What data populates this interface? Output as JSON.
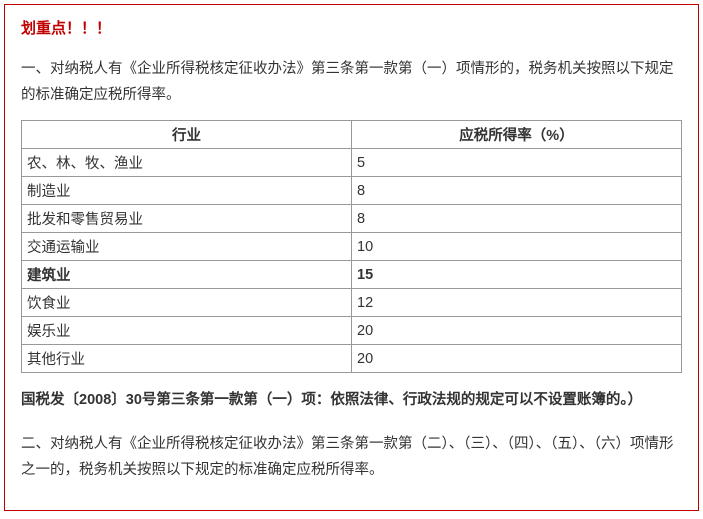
{
  "highlight": "划重点！！！",
  "para1": "一、对纳税人有《企业所得税核定征收办法》第三条第一款第（一）项情形的，税务机关按照以下规定的标准确定应税所得率。",
  "table": {
    "headers": [
      "行业",
      "应税所得率（%）"
    ],
    "rows": [
      {
        "industry": "农、林、牧、渔业",
        "rate": "5",
        "bold": false
      },
      {
        "industry": "制造业",
        "rate": "8",
        "bold": false
      },
      {
        "industry": "批发和零售贸易业",
        "rate": "8",
        "bold": false
      },
      {
        "industry": "交通运输业",
        "rate": "10",
        "bold": false
      },
      {
        "industry": "建筑业",
        "rate": "15",
        "bold": true
      },
      {
        "industry": "饮食业",
        "rate": "12",
        "bold": false
      },
      {
        "industry": "娱乐业",
        "rate": "20",
        "bold": false
      },
      {
        "industry": "其他行业",
        "rate": "20",
        "bold": false
      }
    ]
  },
  "citation": "国税发〔2008〕30号第三条第一款第（一）项：依照法律、行政法规的规定可以不设置账簿的。）",
  "para2": "二、对纳税人有《企业所得税核定征收办法》第三条第一款第（二）、（三）、（四）、（五）、（六）项情形之一的，税务机关按照以下规定的标准确定应税所得率。"
}
